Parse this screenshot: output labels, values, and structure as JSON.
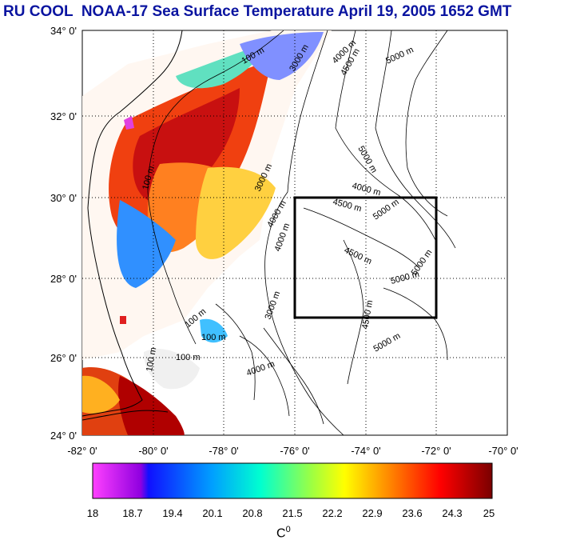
{
  "title": "RU COOL  NOAA-17 Sea Surface Temperature April 19, 2005 1652 GMT",
  "colors": {
    "title": "#0a14a0"
  },
  "map": {
    "lon_ticks": [
      "-82° 0'",
      "-80° 0'",
      "-78° 0'",
      "-76° 0'",
      "-74° 0'",
      "-72° 0'",
      "-70° 0'"
    ],
    "lat_ticks": [
      "34° 0'",
      "32° 0'",
      "30° 0'",
      "28° 0'",
      "26° 0'",
      "24° 0'"
    ],
    "lon_range": [
      -82,
      -70
    ],
    "lat_range": [
      24,
      34
    ],
    "grid": "dotted",
    "study_box": {
      "lon": [
        -76,
        -72
      ],
      "lat": [
        27,
        30
      ]
    },
    "contour_labels": [
      "100 m",
      "3000 m",
      "4000 m",
      "4500 m",
      "5000 m",
      "4000 m",
      "4500 m",
      "5000 m",
      "4000 m",
      "4000 m",
      "4500 m",
      "5000 m",
      "5000 m",
      "4500 m",
      "5000 m",
      "3000 m",
      "100 m",
      "100 m",
      "100 m",
      "100 m",
      "3000 m",
      "100 m",
      "4000 m"
    ]
  },
  "colorbar": {
    "tick_labels": [
      "18",
      "18.7",
      "19.4",
      "20.1",
      "20.8",
      "21.5",
      "22.2",
      "22.9",
      "23.6",
      "24.3",
      "25"
    ],
    "unit": "C",
    "unit_sup": "0",
    "range": [
      18,
      25
    ]
  }
}
